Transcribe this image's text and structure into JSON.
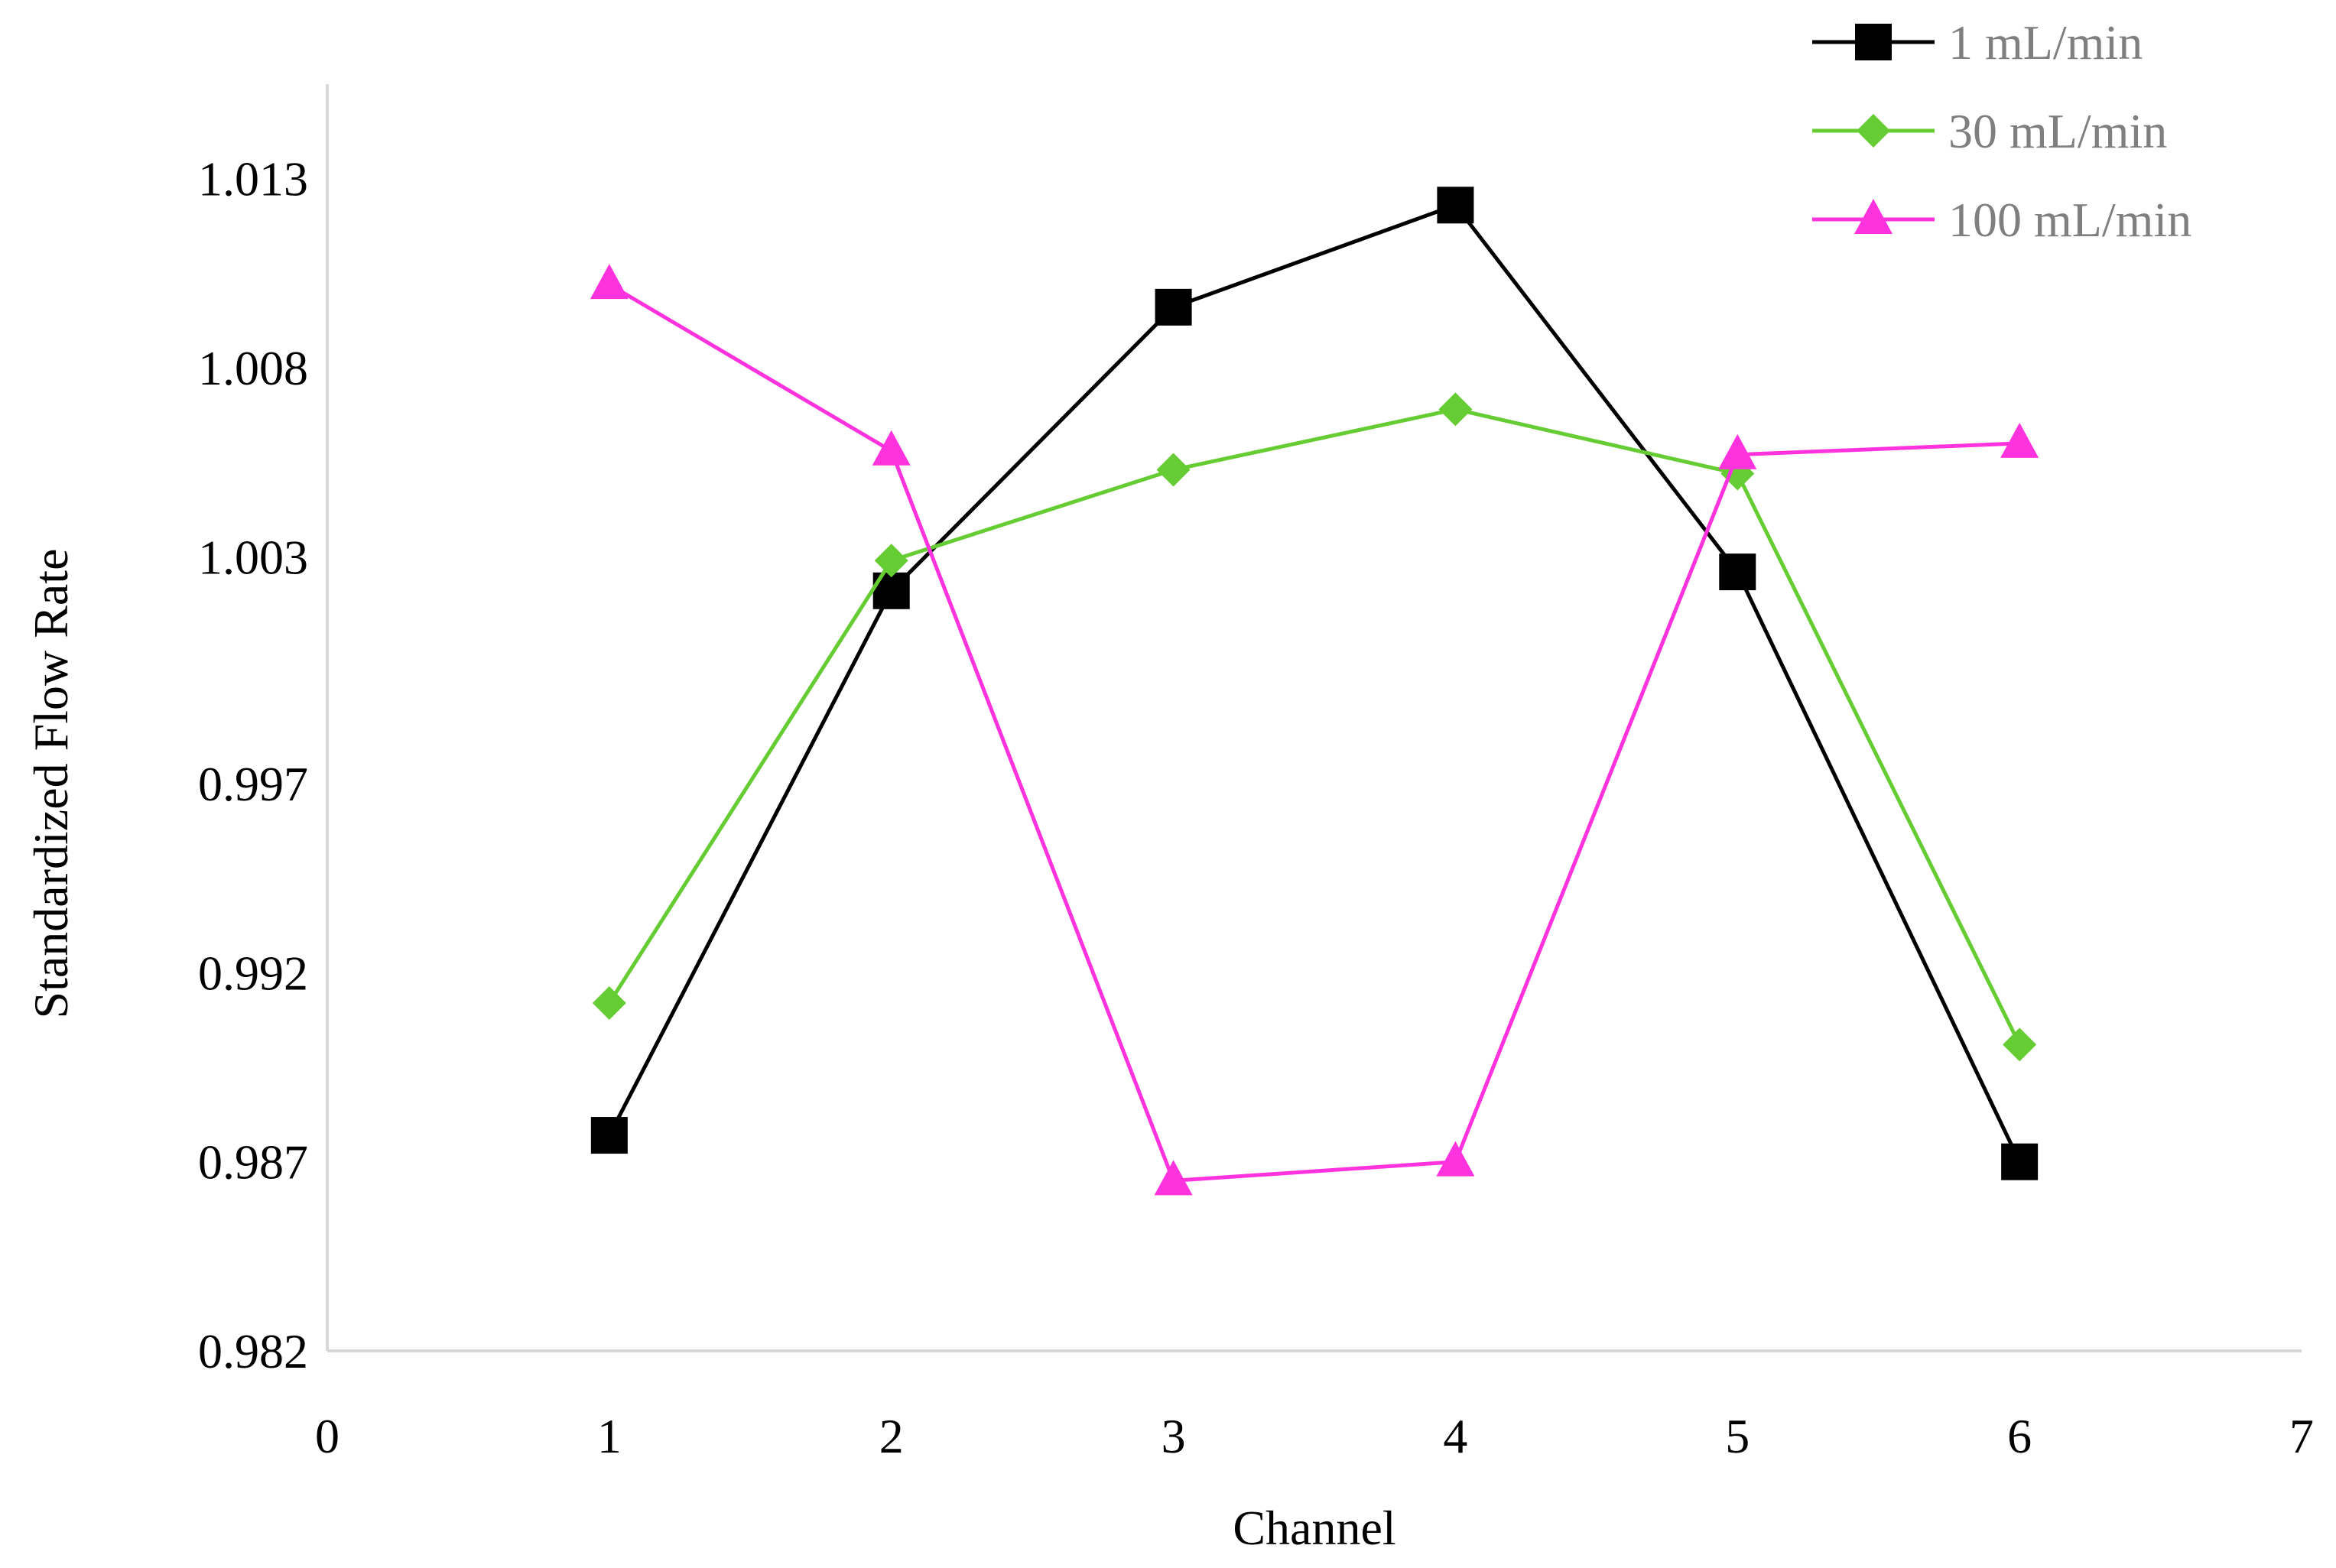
{
  "chart_data": {
    "type": "line",
    "xlabel": "Channel",
    "ylabel": "Standardized Flow Rate",
    "xlim": [
      0,
      7
    ],
    "ylim": [
      0.982,
      1.0155
    ],
    "x_ticks": [
      "0",
      "1",
      "2",
      "3",
      "4",
      "5",
      "6",
      "7"
    ],
    "y_ticks": [
      "0.982",
      "0.987",
      "0.992",
      "0.997",
      "1.003",
      "1.008",
      "1.013"
    ],
    "grid": false,
    "legend_position": "top-right",
    "series": [
      {
        "name": "1 mL/min",
        "color": "#000000",
        "marker": "square",
        "x": [
          1,
          2,
          3,
          4,
          5,
          6
        ],
        "values": [
          0.9877,
          1.0021,
          1.0096,
          1.0123,
          1.0026,
          0.987
        ]
      },
      {
        "name": "30 mL/min",
        "color": "#66cc33",
        "marker": "diamond",
        "x": [
          1,
          2,
          3,
          4,
          5,
          6
        ],
        "values": [
          0.9912,
          1.0029,
          1.0053,
          1.0069,
          1.0052,
          0.9901
        ]
      },
      {
        "name": "100 mL/min",
        "color": "#ff33dd",
        "marker": "triangle",
        "x": [
          1,
          2,
          3,
          4,
          5,
          6
        ],
        "values": [
          1.0102,
          1.0058,
          0.9865,
          0.987,
          1.0057,
          1.006
        ]
      }
    ]
  }
}
